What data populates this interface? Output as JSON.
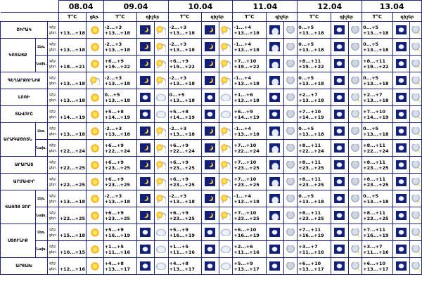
{
  "dates": [
    "08.04",
    "09.04",
    "10.04",
    "11.04",
    "12.04",
    "13.04"
  ],
  "sub_headers": {
    "temp": "T°C",
    "day": "ցեր.",
    "night": "գիշեր",
    "d_abbr": "ցեր.",
    "n_abbr": "գիշ."
  },
  "rows": [
    {
      "region": "ՇԻՐԱԿ",
      "sub": "",
      "n": "-2...+3",
      "d": "+13...+18",
      "days": [
        {
          "n": "-2...+3",
          "d": "+13...+18",
          "ni": "moon",
          "di": "sunc"
        },
        {
          "n": "-2...+3",
          "d": "+13...+18",
          "ni": "moon",
          "di": "sunc"
        },
        {
          "n": "-1...+4",
          "d": "+13...+18",
          "ni": "nc",
          "di": "rn"
        },
        {
          "n": "0...+5",
          "d": "+13...+18",
          "ni": "ns",
          "di": "rn"
        },
        {
          "n": "0...+5",
          "d": "+13...+18",
          "ni": "ns",
          "di": "st"
        }
      ],
      "d0": "+13...+18",
      "i0": "sun"
    },
    {
      "region": "ԿՈՏԱՅՔ",
      "sub": "Լեռ.",
      "d0": "+13...+18",
      "i0": "sun",
      "days": [
        {
          "n": "-2...+3",
          "d": "+13...+18",
          "ni": "moon",
          "di": "sunc"
        },
        {
          "n": "-2...+3",
          "d": "+13...+18",
          "ni": "moon",
          "di": "sunc"
        },
        {
          "n": "-1...+4",
          "d": "+13...+18",
          "ni": "nc",
          "di": "rn"
        },
        {
          "n": "0...+5",
          "d": "+13...+18",
          "ni": "ns",
          "di": "rn"
        },
        {
          "n": "0...+5",
          "d": "+13...+18",
          "ni": "ns",
          "di": "st"
        }
      ]
    },
    {
      "region": "",
      "sub": "Նախ.",
      "d0": "+18...+21",
      "i0": "sun",
      "days": [
        {
          "n": "+6...+9",
          "d": "+19...+22",
          "ni": "moon",
          "di": "sunc"
        },
        {
          "n": "+6...+9",
          "d": "+19...+22",
          "ni": "moon",
          "di": "sunc"
        },
        {
          "n": "+7...+10",
          "d": "+19...+22",
          "ni": "nc",
          "di": "rn"
        },
        {
          "n": "+8...+11",
          "d": "+19...+22",
          "ni": "ns",
          "di": "rn"
        },
        {
          "n": "+8...+11",
          "d": "+19...+22",
          "ni": "ns",
          "di": "st"
        }
      ]
    },
    {
      "region": "ԳԵՂԱՐՔՈՒՆԻՔ",
      "sub": "",
      "d0": "+13...+18",
      "i0": "sunc",
      "days": [
        {
          "n": "-2...+3",
          "d": "+13...+18",
          "ni": "moon",
          "di": "sunc"
        },
        {
          "n": "-2...+3",
          "d": "+13...+18",
          "ni": "moon",
          "di": "sunc"
        },
        {
          "n": "-1...+4",
          "d": "+13...+18",
          "ni": "nc",
          "di": "rn"
        },
        {
          "n": "0...+5",
          "d": "+13...+18",
          "ni": "ns",
          "di": "rn"
        },
        {
          "n": "0...+5",
          "d": "+13...+18",
          "ni": "ns",
          "di": "st"
        }
      ]
    },
    {
      "region": "ԼՈՌԻ",
      "sub": "",
      "d0": "+13...+18",
      "i0": "sun",
      "days": [
        {
          "n": "0...+5",
          "d": "+13...+18",
          "ni": "ns",
          "di": "ov"
        },
        {
          "n": "0...+5",
          "d": "+13...+18",
          "ni": "ns",
          "di": "ov"
        },
        {
          "n": "+1...+6",
          "d": "+13...+18",
          "ni": "ns",
          "di": "rn"
        },
        {
          "n": "+2...+7",
          "d": "+13...+18",
          "ni": "ns",
          "di": "st"
        },
        {
          "n": "+2...+7",
          "d": "+13...+18",
          "ni": "ns",
          "di": "st"
        }
      ]
    },
    {
      "region": "ՏԱՎՈՒՇ",
      "sub": "",
      "d0": "+14...+19",
      "i0": "sun",
      "days": [
        {
          "n": "+5...+8",
          "d": "+14...+19",
          "ni": "ns",
          "di": "ov"
        },
        {
          "n": "+5...+8",
          "d": "+14...+19",
          "ni": "ns",
          "di": "ov"
        },
        {
          "n": "+6...+9",
          "d": "+14...+19",
          "ni": "ns",
          "di": "rn"
        },
        {
          "n": "+7...+10",
          "d": "+14...+19",
          "ni": "ns",
          "di": "st"
        },
        {
          "n": "+7...+10",
          "d": "+14...+19",
          "ni": "ns",
          "di": "st"
        }
      ]
    },
    {
      "region": "ԱՐԱԳԱԾՈՏՆ",
      "sub": "Լեռ.",
      "d0": "+13...+18",
      "i0": "sun",
      "days": [
        {
          "n": "-2...+3",
          "d": "+13...+18",
          "ni": "moon",
          "di": "sunc"
        },
        {
          "n": "-2...+3",
          "d": "+13...+18",
          "ni": "moon",
          "di": "sunc"
        },
        {
          "n": "-1...+4",
          "d": "+13...+18",
          "ni": "nc",
          "di": "rn"
        },
        {
          "n": "0...+5",
          "d": "+13...+18",
          "ni": "ns",
          "di": "rn"
        },
        {
          "n": "0...+5",
          "d": "+13...+18",
          "ni": "ns",
          "di": "st"
        }
      ]
    },
    {
      "region": "",
      "sub": "Նախ.",
      "d0": "+22...+24",
      "i0": "sun",
      "days": [
        {
          "n": "+6...+9",
          "d": "+22...+24",
          "ni": "moon",
          "di": "sunc"
        },
        {
          "n": "+6...+9",
          "d": "+22...+24",
          "ni": "moon",
          "di": "sunc"
        },
        {
          "n": "+7...+10",
          "d": "+22...+24",
          "ni": "nc",
          "di": "rn"
        },
        {
          "n": "+8...+11",
          "d": "+22...+24",
          "ni": "ns",
          "di": "rn"
        },
        {
          "n": "+8...+11",
          "d": "+22...+24",
          "ni": "ns",
          "di": "st"
        }
      ]
    },
    {
      "region": "ԱՐԱՐԱՏ",
      "sub": "",
      "d0": "+22...+25",
      "i0": "sun",
      "days": [
        {
          "n": "+6...+9",
          "d": "+23...+25",
          "ni": "moon",
          "di": "sunc"
        },
        {
          "n": "+6...+9",
          "d": "+23...+25",
          "ni": "moon",
          "di": "sunc"
        },
        {
          "n": "+7...+10",
          "d": "+23...+25",
          "ni": "nc",
          "di": "rn"
        },
        {
          "n": "+8...+11",
          "d": "+23...+25",
          "ni": "ns",
          "di": "rn"
        },
        {
          "n": "+8...+11",
          "d": "+23...+25",
          "ni": "ns",
          "di": "st"
        }
      ]
    },
    {
      "region": "ԱՐՄԱՎԻՐ",
      "sub": "",
      "d0": "+22...+25",
      "i0": "sun",
      "days": [
        {
          "n": "+6...+9",
          "d": "+23...+25",
          "ni": "moon",
          "di": "sunc"
        },
        {
          "n": "+6...+9",
          "d": "+23...+25",
          "ni": "moon",
          "di": "sunc"
        },
        {
          "n": "+7...+10",
          "d": "+23...+25",
          "ni": "nc",
          "di": "rn"
        },
        {
          "n": "+8...+11",
          "d": "+23...+25",
          "ni": "ns",
          "di": "rn"
        },
        {
          "n": "+8...+11",
          "d": "+23...+25",
          "ni": "ns",
          "di": "st"
        }
      ]
    },
    {
      "region": "ՎԱՅՈՑ ՁՈՐ",
      "sub": "Լեռ.",
      "d0": "+13...+18",
      "i0": "sun",
      "days": [
        {
          "n": "-2...+3",
          "d": "+13...+18",
          "ni": "moon",
          "di": "sunc"
        },
        {
          "n": "-2...+3",
          "d": "+13...+18",
          "ni": "moon",
          "di": "sunc"
        },
        {
          "n": "-1...+4",
          "d": "+13...+18",
          "ni": "nc",
          "di": "rn"
        },
        {
          "n": "0...+5",
          "d": "+13...+18",
          "ni": "ns",
          "di": "rn"
        },
        {
          "n": "0...+5",
          "d": "+13...+18",
          "ni": "ns",
          "di": "st"
        }
      ]
    },
    {
      "region": "",
      "sub": "Նախ.",
      "d0": "+22...+25",
      "i0": "sun",
      "days": [
        {
          "n": "+6...+9",
          "d": "+23...+25",
          "ni": "moon",
          "di": "sunc"
        },
        {
          "n": "+6...+9",
          "d": "+23...+25",
          "ni": "moon",
          "di": "sunc"
        },
        {
          "n": "+7...+10",
          "d": "+23...+25",
          "ni": "nc",
          "di": "rn"
        },
        {
          "n": "+8...+11",
          "d": "+23...+25",
          "ni": "ns",
          "di": "rn"
        },
        {
          "n": "+8...+11",
          "d": "+23...+25",
          "ni": "ns",
          "di": "st"
        }
      ]
    },
    {
      "region": "ՍՅՈՒՆԻՔ",
      "sub": "Լեռ.",
      "d0": "+15...+18",
      "i0": "sun",
      "days": [
        {
          "n": "+5...+9",
          "d": "+16...+19",
          "ni": "ns",
          "di": "ov"
        },
        {
          "n": "+5...+9",
          "d": "+16...+19",
          "ni": "ns",
          "di": "ov"
        },
        {
          "n": "+6...+10",
          "d": "+16...+19",
          "ni": "ns",
          "di": "rn"
        },
        {
          "n": "+7...+11",
          "d": "+16...+19",
          "ni": "ns",
          "di": "st"
        },
        {
          "n": "+7...+11",
          "d": "+16...+19",
          "ni": "ns",
          "di": "st"
        }
      ]
    },
    {
      "region": "",
      "sub": "Նախ.",
      "d0": "+10...+15",
      "i0": "sun",
      "days": [
        {
          "n": "+1...+5",
          "d": "+11...+16",
          "ni": "ns",
          "di": "ov"
        },
        {
          "n": "+1...+5",
          "d": "+11...+16",
          "ni": "ns",
          "di": "ov"
        },
        {
          "n": "+2...+6",
          "d": "+11...+16",
          "ni": "ns",
          "di": "rn"
        },
        {
          "n": "+3...+7",
          "d": "+11...+16",
          "ni": "ns",
          "di": "st"
        },
        {
          "n": "+3...+7",
          "d": "+11...+16",
          "ni": "ns",
          "di": "st"
        }
      ]
    },
    {
      "region": "ԱՐՑԱԽ",
      "sub": "",
      "d0": "+12...+16",
      "i0": "sun",
      "days": [
        {
          "n": "+4...+8",
          "d": "+13...+17",
          "ni": "ns",
          "di": "ov"
        },
        {
          "n": "+4...+8",
          "d": "+13...+17",
          "ni": "ns",
          "di": "ov"
        },
        {
          "n": "+5...+9",
          "d": "+13...+17",
          "ni": "ns",
          "di": "rn"
        },
        {
          "n": "+6...+10",
          "d": "+13...+17",
          "ni": "ns",
          "di": "st"
        },
        {
          "n": "+6...+10",
          "d": "+13...+17",
          "ni": "ns",
          "di": "st"
        }
      ]
    }
  ]
}
